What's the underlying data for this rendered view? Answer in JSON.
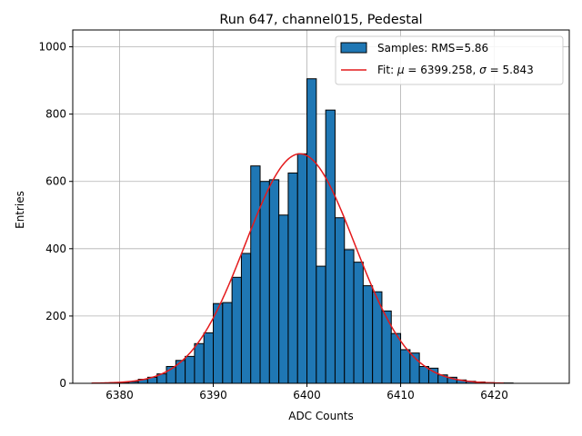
{
  "chart_data": {
    "type": "bar",
    "title": "Run 647, channel015, Pedestal",
    "xlabel": "ADC Counts",
    "ylabel": "Entries",
    "xlim": [
      6375,
      6428
    ],
    "ylim": [
      0,
      1050
    ],
    "grid": true,
    "legend_position": "top-right",
    "colors": {
      "bar": "#1f77b4",
      "bar_edge": "#000000",
      "fit": "#e41a1c",
      "grid": "#b0b0b0"
    },
    "xticks": [
      6380,
      6390,
      6400,
      6410,
      6420
    ],
    "yticks": [
      0,
      200,
      400,
      600,
      800,
      1000
    ],
    "bin_width": 1,
    "bins": [
      6379,
      6380,
      6381,
      6382,
      6383,
      6384,
      6385,
      6386,
      6387,
      6388,
      6389,
      6390,
      6391,
      6392,
      6393,
      6394,
      6395,
      6396,
      6397,
      6398,
      6399,
      6400,
      6401,
      6402,
      6403,
      6404,
      6405,
      6406,
      6407,
      6408,
      6409,
      6410,
      6411,
      6412,
      6413,
      6414,
      6415,
      6416,
      6417,
      6418,
      6419,
      6420,
      6421,
      6422,
      6423,
      6424,
      6425
    ],
    "counts": [
      2,
      3,
      5,
      12,
      18,
      28,
      50,
      68,
      80,
      118,
      150,
      237,
      240,
      315,
      386,
      646,
      600,
      605,
      500,
      625,
      682,
      905,
      348,
      812,
      492,
      397,
      360,
      290,
      272,
      215,
      148,
      100,
      90,
      50,
      45,
      25,
      18,
      10,
      6,
      4,
      2,
      1,
      1,
      0,
      0,
      0,
      0
    ],
    "fit": {
      "mu": 6399.258,
      "sigma": 5.843,
      "amplitude": 682,
      "x_range": [
        6377,
        6421
      ]
    },
    "series": [
      {
        "name": "Samples: RMS=5.86",
        "kind": "histogram"
      },
      {
        "name_prefix": "Fit: ",
        "name_mu": "μ",
        "name_mid": " = 6399.258, ",
        "name_sigma": "σ",
        "name_suffix": " = 5.843",
        "kind": "line"
      }
    ]
  }
}
